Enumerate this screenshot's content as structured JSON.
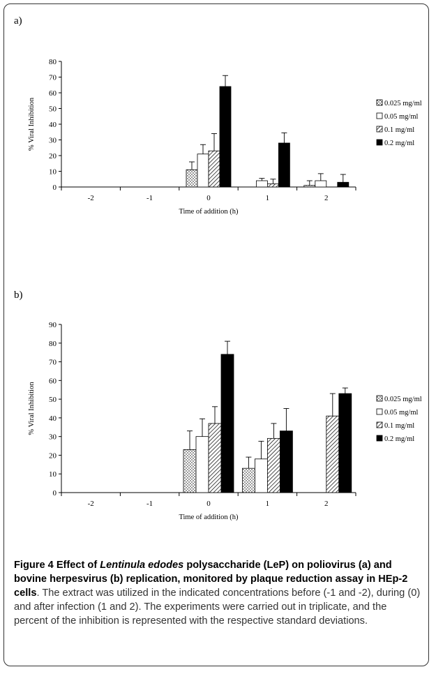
{
  "chart_data": [
    {
      "panel": "a)",
      "type": "bar",
      "categories": [
        "-2",
        "-1",
        "0",
        "1",
        "2"
      ],
      "xlabel": "Time of addition (h)",
      "ylabel": "% Viral Inhibition",
      "ylim": [
        0,
        80
      ],
      "yticks": [
        0,
        10,
        20,
        30,
        40,
        50,
        60,
        70,
        80
      ],
      "legend_position": "right",
      "series": [
        {
          "name": "0.025 mg/ml",
          "fill": "dots",
          "values": [
            0,
            0,
            11,
            0,
            1
          ],
          "errors": [
            0,
            0,
            5,
            0,
            3
          ]
        },
        {
          "name": "0.05 mg/ml",
          "fill": "white",
          "values": [
            0,
            0,
            21,
            4,
            4
          ],
          "errors": [
            0,
            0,
            6,
            1.5,
            4.5
          ]
        },
        {
          "name": "0.1 mg/ml",
          "fill": "hatch",
          "values": [
            0,
            0,
            23,
            2,
            0
          ],
          "errors": [
            0,
            0,
            11,
            3,
            0
          ]
        },
        {
          "name": "0.2 mg/ml",
          "fill": "black",
          "values": [
            0,
            0,
            64,
            28,
            3
          ],
          "errors": [
            0,
            0,
            7,
            6.5,
            5
          ]
        }
      ]
    },
    {
      "panel": "b)",
      "type": "bar",
      "categories": [
        "-2",
        "-1",
        "0",
        "1",
        "2"
      ],
      "xlabel": "Time of addition (h)",
      "ylabel": "% Viral Inhibition",
      "ylim": [
        0,
        90
      ],
      "yticks": [
        0,
        10,
        20,
        30,
        40,
        50,
        60,
        70,
        80,
        90
      ],
      "legend_position": "right",
      "series": [
        {
          "name": "0.025 mg/ml",
          "fill": "dots",
          "values": [
            0,
            0,
            23,
            13,
            0
          ],
          "errors": [
            0,
            0,
            10,
            6,
            0
          ]
        },
        {
          "name": "0.05 mg/ml",
          "fill": "white",
          "values": [
            0,
            0,
            30,
            18,
            0
          ],
          "errors": [
            0,
            0,
            9.5,
            9.5,
            0
          ]
        },
        {
          "name": "0.1 mg/ml",
          "fill": "hatch",
          "values": [
            0,
            0,
            37,
            29,
            41
          ],
          "errors": [
            0,
            0,
            9,
            8,
            12
          ]
        },
        {
          "name": "0.2 mg/ml",
          "fill": "black",
          "values": [
            0,
            0,
            74,
            33,
            53
          ],
          "errors": [
            0,
            0,
            7,
            12,
            3
          ]
        }
      ]
    }
  ],
  "caption": {
    "lead_before": "Figure 4 Effect of ",
    "lead_italic": "Lentinula edodes",
    "lead_after": " polysaccharide (LeP) on poliovirus (a) and bovine herpesvirus (b) replication, monitored by plaque reduction assay in HEp-2 cells",
    "body": ". The extract was utilized in the indicated concentrations before (-1 and -2), during (0) and after infection (1 and 2). The experiments were carried out in triplicate, and the percent of the inhibition is represented with the respective standard deviations."
  }
}
